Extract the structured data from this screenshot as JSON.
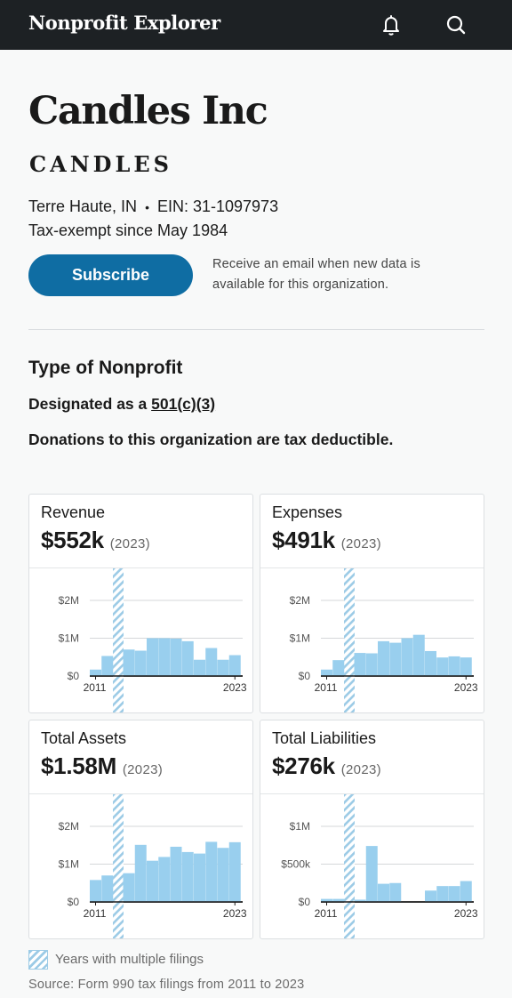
{
  "header": {
    "brand": "Nonprofit Explorer",
    "icons": [
      "bell-icon",
      "search-icon"
    ]
  },
  "org": {
    "name": "Candles Inc",
    "subtitle": "CANDLES",
    "location": "Terre Haute, IN",
    "separator": "•",
    "ein": "EIN: 31-1097973",
    "tax_exempt": "Tax-exempt since May 1984"
  },
  "subscribe": {
    "button_label": "Subscribe",
    "note": "Receive an email when new data is available for this organization."
  },
  "type_section": {
    "heading": "Type of Nonprofit",
    "designated_prefix": "Designated as a ",
    "designation": "501(c)(3)",
    "deductible": "Donations to this organization are tax deductible."
  },
  "colors": {
    "accent": "#0f6da3",
    "bar": "#99cfee",
    "header_bg": "#1d2124"
  },
  "cards": [
    {
      "title": "Revenue",
      "value": "$552k",
      "year": "(2023)"
    },
    {
      "title": "Expenses",
      "value": "$491k",
      "year": "(2023)"
    },
    {
      "title": "Total Assets",
      "value": "$1.58M",
      "year": "(2023)"
    },
    {
      "title": "Total Liabilities",
      "value": "$276k",
      "year": "(2023)"
    }
  ],
  "chart_data": [
    {
      "type": "bar",
      "title": "Revenue",
      "unit": "$",
      "x_start_label": "2011",
      "x_end_label": "2023",
      "y_ticks": [
        0,
        1000000,
        2000000
      ],
      "y_tick_labels": [
        "$0",
        "$1M",
        "$2M"
      ],
      "ylim": [
        0,
        2000000
      ],
      "values": [
        170000,
        530000,
        700000,
        670000,
        1000000,
        1000000,
        990000,
        920000,
        430000,
        740000,
        430000,
        552000
      ],
      "multiple_filings_after_bar": 2
    },
    {
      "type": "bar",
      "title": "Expenses",
      "unit": "$",
      "x_start_label": "2011",
      "x_end_label": "2023",
      "y_ticks": [
        0,
        1000000,
        2000000
      ],
      "y_tick_labels": [
        "$0",
        "$1M",
        "$2M"
      ],
      "ylim": [
        0,
        2000000
      ],
      "values": [
        170000,
        420000,
        610000,
        600000,
        920000,
        880000,
        1000000,
        1090000,
        660000,
        490000,
        520000,
        491000
      ],
      "multiple_filings_after_bar": 2
    },
    {
      "type": "bar",
      "title": "Total Assets",
      "unit": "$",
      "x_start_label": "2011",
      "x_end_label": "2023",
      "y_ticks": [
        0,
        1000000,
        2000000
      ],
      "y_tick_labels": [
        "$0",
        "$1M",
        "$2M"
      ],
      "ylim": [
        0,
        2000000
      ],
      "values": [
        580000,
        700000,
        760000,
        1510000,
        1090000,
        1190000,
        1460000,
        1320000,
        1280000,
        1590000,
        1430000,
        1580000
      ],
      "multiple_filings_after_bar": 2
    },
    {
      "type": "bar",
      "title": "Total Liabilities",
      "unit": "$",
      "x_start_label": "2011",
      "x_end_label": "2023",
      "y_ticks": [
        0,
        500000,
        1000000
      ],
      "y_tick_labels": [
        "$0",
        "$500k",
        "$1M"
      ],
      "ylim": [
        0,
        1000000
      ],
      "values": [
        40000,
        40000,
        30000,
        740000,
        240000,
        250000,
        0,
        0,
        150000,
        210000,
        210000,
        276000
      ],
      "multiple_filings_after_bar": 2
    }
  ],
  "legend": {
    "label": "Years with multiple filings"
  },
  "source": "Source: Form 990 tax filings from 2011 to 2023"
}
